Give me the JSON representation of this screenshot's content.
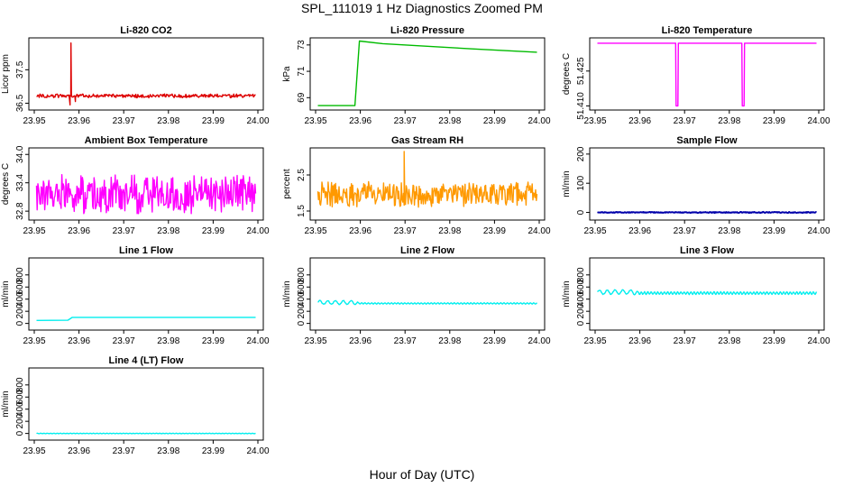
{
  "page": {
    "title": "SPL_111019  1 Hz Diagnostics Zoomed PM",
    "xlabel": "Hour of Day (UTC)"
  },
  "chart_data": [
    {
      "type": "line",
      "id": "co2",
      "title": "Li-820 CO2",
      "ylabel": "Licor ppm",
      "color": "#dd0000",
      "xlim": [
        23.95,
        24.0
      ],
      "ylim": [
        36.35,
        38.4
      ],
      "yticks": [
        36.5,
        37.5
      ],
      "ytick_labels": [
        "36.5",
        "37.5"
      ],
      "xticks": [
        23.95,
        23.96,
        23.97,
        23.98,
        23.99,
        24.0
      ],
      "xtick_labels": [
        "23.95",
        "23.96",
        "23.97",
        "23.98",
        "23.99",
        "24.00"
      ],
      "x_range": [
        23.9505,
        23.9995
      ],
      "style": "noise",
      "base": 36.72,
      "amp": 0.05,
      "events": [
        {
          "x": 23.9582,
          "y": 38.3
        },
        {
          "x": 23.958,
          "y": 36.45
        },
        {
          "x": 23.9592,
          "y": 36.55
        }
      ]
    },
    {
      "type": "line",
      "id": "pressure",
      "title": "Li-820 Pressure",
      "ylabel": "kPa",
      "color": "#00bb00",
      "xlim": [
        23.95,
        24.0
      ],
      "ylim": [
        68.2,
        73.4
      ],
      "yticks": [
        69,
        71,
        73
      ],
      "ytick_labels": [
        "69",
        "71",
        "73"
      ],
      "xticks": [
        23.95,
        23.96,
        23.97,
        23.98,
        23.99,
        24.0
      ],
      "xtick_labels": [
        "23.95",
        "23.96",
        "23.97",
        "23.98",
        "23.99",
        "24.00"
      ],
      "style": "path",
      "points": [
        [
          23.9505,
          68.4
        ],
        [
          23.9588,
          68.4
        ],
        [
          23.9598,
          73.3
        ],
        [
          23.965,
          73.1
        ],
        [
          23.975,
          72.9
        ],
        [
          23.985,
          72.7
        ],
        [
          23.9995,
          72.45
        ]
      ]
    },
    {
      "type": "line",
      "id": "licor_temp",
      "title": "Li-820 Temperature",
      "ylabel": "degrees C",
      "color": "#ff00ff",
      "xlim": [
        23.95,
        24.0
      ],
      "ylim": [
        51.409,
        51.4385
      ],
      "yticks": [
        51.41,
        51.425
      ],
      "ytick_labels": [
        "51.410",
        "51.425"
      ],
      "xticks": [
        23.95,
        23.96,
        23.97,
        23.98,
        23.99,
        24.0
      ],
      "xtick_labels": [
        "23.95",
        "23.96",
        "23.97",
        "23.98",
        "23.99",
        "24.00"
      ],
      "style": "path",
      "points": [
        [
          23.9505,
          51.437
        ],
        [
          23.968,
          51.437
        ],
        [
          23.9681,
          51.41
        ],
        [
          23.9685,
          51.41
        ],
        [
          23.9686,
          51.437
        ],
        [
          23.9828,
          51.437
        ],
        [
          23.9829,
          51.41
        ],
        [
          23.9833,
          51.41
        ],
        [
          23.9834,
          51.437
        ],
        [
          23.9995,
          51.437
        ]
      ]
    },
    {
      "type": "line",
      "id": "box_temp",
      "title": "Ambient Box Temperature",
      "ylabel": "degrees C",
      "color": "#ff00ff",
      "xlim": [
        23.95,
        24.0
      ],
      "ylim": [
        32.65,
        34.1
      ],
      "yticks": [
        32.8,
        33.4,
        34.0
      ],
      "ytick_labels": [
        "32.8",
        "33.4",
        "34.0"
      ],
      "xticks": [
        23.95,
        23.96,
        23.97,
        23.98,
        23.99,
        24.0
      ],
      "xtick_labels": [
        "23.95",
        "23.96",
        "23.97",
        "23.98",
        "23.99",
        "24.00"
      ],
      "x_range": [
        23.9505,
        23.9995
      ],
      "style": "noise",
      "base": 33.15,
      "amp": 0.35,
      "min": 32.75,
      "max": 34.0
    },
    {
      "type": "line",
      "id": "rh",
      "title": "Gas Stream RH",
      "ylabel": "percent",
      "color": "#ff9900",
      "xlim": [
        23.95,
        24.0
      ],
      "ylim": [
        1.3,
        3.2
      ],
      "yticks": [
        1.5,
        2.5
      ],
      "ytick_labels": [
        "1.5",
        "2.5"
      ],
      "xticks": [
        23.95,
        23.96,
        23.97,
        23.98,
        23.99,
        24.0
      ],
      "xtick_labels": [
        "23.95",
        "23.96",
        "23.97",
        "23.98",
        "23.99",
        "24.00"
      ],
      "x_range": [
        23.9505,
        23.9995
      ],
      "style": "noise",
      "base": 1.95,
      "amp": 0.3,
      "min": 1.4,
      "max": 3.15,
      "events": [
        {
          "x": 23.9698,
          "y": 3.15
        }
      ]
    },
    {
      "type": "line",
      "id": "sample_flow",
      "title": "Sample Flow",
      "ylabel": "ml/min",
      "color": "#0000aa",
      "xlim": [
        23.95,
        24.0
      ],
      "ylim": [
        -20,
        215
      ],
      "yticks": [
        0,
        100,
        200
      ],
      "ytick_labels": [
        "0",
        "100",
        "200"
      ],
      "xticks": [
        23.95,
        23.96,
        23.97,
        23.98,
        23.99,
        24.0
      ],
      "xtick_labels": [
        "23.95",
        "23.96",
        "23.97",
        "23.98",
        "23.99",
        "24.00"
      ],
      "x_range": [
        23.9505,
        23.9995
      ],
      "style": "noise",
      "base": 0,
      "amp": 1.5
    },
    {
      "type": "line",
      "id": "line1",
      "title": "Line 1 Flow",
      "ylabel": "ml/min",
      "color": "#00eeee",
      "xlim": [
        23.95,
        24.0
      ],
      "ylim": [
        -80,
        1050
      ],
      "yticks": [
        0,
        200,
        400,
        600,
        800
      ],
      "ytick_labels": [
        "0",
        "200",
        "400",
        "600",
        "800"
      ],
      "xticks": [
        23.95,
        23.96,
        23.97,
        23.98,
        23.99,
        24.0
      ],
      "xtick_labels": [
        "23.95",
        "23.96",
        "23.97",
        "23.98",
        "23.99",
        "24.00"
      ],
      "style": "path",
      "points": [
        [
          23.9505,
          50
        ],
        [
          23.9575,
          52
        ],
        [
          23.9585,
          100
        ],
        [
          23.9995,
          100
        ]
      ]
    },
    {
      "type": "line",
      "id": "line2",
      "title": "Line 2 Flow",
      "ylabel": "ml/min",
      "color": "#00eeee",
      "xlim": [
        23.95,
        24.0
      ],
      "ylim": [
        -80,
        1050
      ],
      "yticks": [
        0,
        200,
        400,
        600,
        800
      ],
      "ytick_labels": [
        "0",
        "200",
        "400",
        "600",
        "800"
      ],
      "xticks": [
        23.95,
        23.96,
        23.97,
        23.98,
        23.99,
        24.0
      ],
      "xtick_labels": [
        "23.95",
        "23.96",
        "23.97",
        "23.98",
        "23.99",
        "24.00"
      ],
      "x_range": [
        23.9505,
        23.9995
      ],
      "style": "wave",
      "base": 330,
      "amp": 10,
      "early_end": 23.9595,
      "early_base": 345,
      "early_amp": 30
    },
    {
      "type": "line",
      "id": "line3",
      "title": "Line 3 Flow",
      "ylabel": "ml/min",
      "color": "#00eeee",
      "xlim": [
        23.95,
        24.0
      ],
      "ylim": [
        -80,
        1050
      ],
      "yticks": [
        0,
        200,
        400,
        600,
        800
      ],
      "ytick_labels": [
        "0",
        "200",
        "400",
        "600",
        "800"
      ],
      "xticks": [
        23.95,
        23.96,
        23.97,
        23.98,
        23.99,
        24.0
      ],
      "xtick_labels": [
        "23.95",
        "23.96",
        "23.97",
        "23.98",
        "23.99",
        "24.00"
      ],
      "x_range": [
        23.9505,
        23.9995
      ],
      "style": "wave",
      "base": 500,
      "amp": 20,
      "early_end": 23.9595,
      "early_base": 515,
      "early_amp": 35
    },
    {
      "type": "line",
      "id": "line4",
      "title": "Line 4 (LT) Flow",
      "ylabel": "ml/min",
      "color": "#00eeee",
      "xlim": [
        23.95,
        24.0
      ],
      "ylim": [
        -80,
        1050
      ],
      "yticks": [
        0,
        200,
        400,
        600,
        800
      ],
      "ytick_labels": [
        "0",
        "200",
        "400",
        "600",
        "800"
      ],
      "xticks": [
        23.95,
        23.96,
        23.97,
        23.98,
        23.99,
        24.0
      ],
      "xtick_labels": [
        "23.95",
        "23.96",
        "23.97",
        "23.98",
        "23.99",
        "24.00"
      ],
      "x_range": [
        23.9505,
        23.9995
      ],
      "style": "wave",
      "base": 0,
      "amp": 4
    }
  ]
}
